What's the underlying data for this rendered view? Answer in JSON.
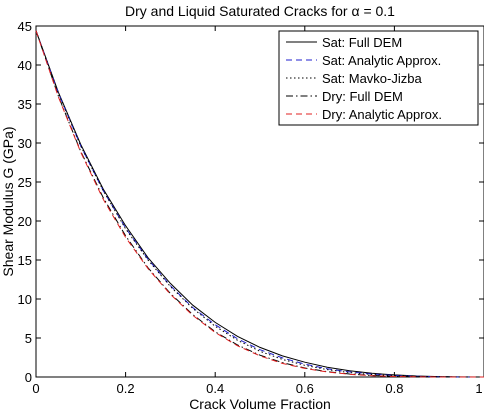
{
  "chart_data": {
    "type": "line",
    "title": "Dry and Liquid Saturated Cracks for α = 0.1",
    "xlabel": "Crack Volume Fraction",
    "ylabel": "Shear Modulus G (GPa)",
    "xlim": [
      0,
      1
    ],
    "ylim": [
      0,
      45
    ],
    "xticks": [
      0,
      0.2,
      0.4,
      0.6,
      0.8,
      1
    ],
    "xtick_labels": [
      "0",
      "0.2",
      "0.4",
      "0.6",
      "0.8",
      "1"
    ],
    "yticks": [
      0,
      5,
      10,
      15,
      20,
      25,
      30,
      35,
      40,
      45
    ],
    "ytick_labels": [
      "0",
      "5",
      "10",
      "15",
      "20",
      "25",
      "30",
      "35",
      "40",
      "45"
    ],
    "grid": false,
    "legend_position": "top-right",
    "x": [
      0,
      0.05,
      0.1,
      0.15,
      0.2,
      0.25,
      0.3,
      0.35,
      0.4,
      0.45,
      0.5,
      0.55,
      0.6,
      0.65,
      0.7,
      0.75,
      0.8,
      0.85,
      0.9,
      0.95,
      1
    ],
    "series": [
      {
        "name": "Sat: Full DEM",
        "color": "#000000",
        "dash": "solid",
        "values": [
          44.4,
          36.5,
          29.8,
          24.1,
          19.4,
          15.3,
          12.0,
          9.2,
          7.0,
          5.2,
          3.8,
          2.7,
          1.9,
          1.25,
          0.8,
          0.48,
          0.27,
          0.13,
          0.05,
          0.01,
          0
        ]
      },
      {
        "name": "Sat: Analytic Approx.",
        "color": "#1f1fcf",
        "dash": "dashed",
        "values": [
          44.4,
          36.4,
          29.6,
          23.9,
          19.1,
          15.1,
          11.7,
          8.9,
          6.7,
          4.9,
          3.5,
          2.45,
          1.65,
          1.05,
          0.65,
          0.38,
          0.2,
          0.09,
          0.03,
          0.005,
          0
        ]
      },
      {
        "name": "Sat: Mavko-Jizba",
        "color": "#000000",
        "dash": "dotted",
        "values": [
          44.4,
          36.4,
          29.6,
          23.9,
          19.0,
          15.0,
          11.6,
          8.8,
          6.5,
          4.7,
          3.3,
          2.25,
          1.5,
          0.95,
          0.57,
          0.32,
          0.16,
          0.07,
          0.02,
          0.003,
          0
        ]
      },
      {
        "name": "Dry: Full DEM",
        "color": "#000000",
        "dash": "dashdot",
        "values": [
          44.4,
          36.0,
          28.9,
          23.0,
          18.1,
          14.0,
          10.7,
          8.0,
          5.8,
          4.1,
          2.8,
          1.85,
          1.15,
          0.68,
          0.38,
          0.19,
          0.08,
          0.03,
          0.008,
          0.001,
          0
        ]
      },
      {
        "name": "Dry: Analytic Approx.",
        "color": "#e02020",
        "dash": "dashed",
        "values": [
          44.4,
          35.9,
          28.8,
          22.8,
          17.9,
          13.9,
          10.6,
          7.9,
          5.7,
          4.0,
          2.7,
          1.75,
          1.1,
          0.64,
          0.35,
          0.17,
          0.07,
          0.025,
          0.006,
          0.001,
          0
        ]
      }
    ]
  }
}
